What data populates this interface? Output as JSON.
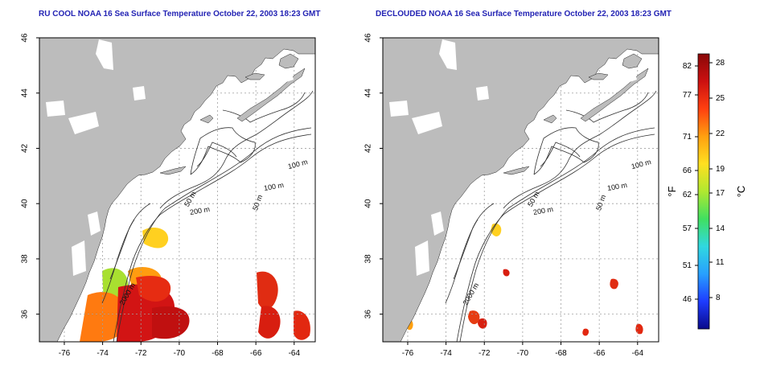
{
  "panels": [
    {
      "title": "RU COOL NOAA 16 Sea Surface Temperature October 22, 2003 18:23 GMT",
      "mode": "cool"
    },
    {
      "title": "DECLOUDED NOAA 16 Sea Surface Temperature October 22, 2003 18:23 GMT",
      "mode": "declouded"
    }
  ],
  "axes": {
    "lon_ticks": [
      "-76",
      "-74",
      "-72",
      "-70",
      "-68",
      "-66",
      "-64"
    ],
    "lat_ticks": [
      "36",
      "38",
      "40",
      "42",
      "44",
      "46"
    ],
    "lon_range": [
      -77.3,
      -62.9
    ],
    "lat_range": [
      35.0,
      46.0
    ]
  },
  "contours": {
    "labels": [
      "100 m",
      "100 m",
      "50 m",
      "200 m",
      "50 m",
      "2000 m"
    ]
  },
  "colorbar": {
    "f_label": "°F",
    "c_label": "°C",
    "f_ticks": [
      "82",
      "77",
      "71",
      "66",
      "62",
      "57",
      "51",
      "46"
    ],
    "c_ticks": [
      "28",
      "25",
      "22",
      "19",
      "17",
      "14",
      "11",
      "8"
    ],
    "colors": [
      "#0a0a8a",
      "#1e3cff",
      "#28a0ff",
      "#30d8e0",
      "#40e060",
      "#b0e830",
      "#ffe020",
      "#ffa010",
      "#ff4010",
      "#cc1010",
      "#8a0808"
    ]
  },
  "colors": {
    "land": "#bcbcbc",
    "ocean": "#ffffff",
    "contour": "#303030",
    "grid": "#a0a0a0",
    "title": "#2323b4"
  }
}
